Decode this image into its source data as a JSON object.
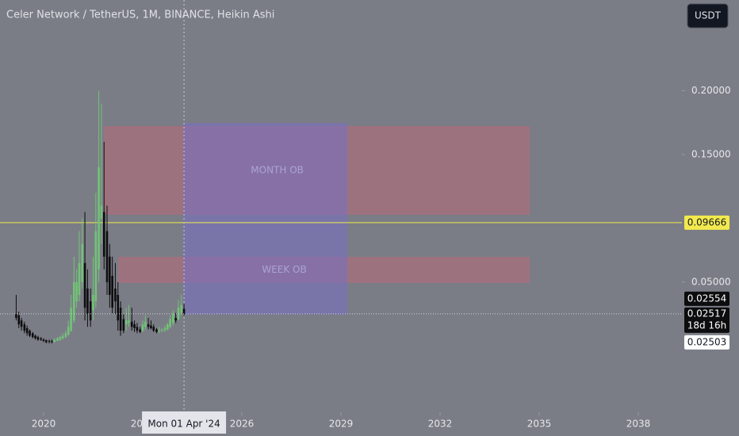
{
  "chart_data": {
    "type": "candlestick",
    "title": "Celer Network / TetherUS, 1M, BINANCE, Heikin Ashi",
    "currency": "USDT",
    "up_color": "#72c378",
    "down_color": "#0d0d0f",
    "x": [
      2019.17,
      2019.25,
      2019.33,
      2019.42,
      2019.5,
      2019.58,
      2019.67,
      2019.75,
      2019.83,
      2019.92,
      2020.0,
      2020.08,
      2020.17,
      2020.25,
      2020.33,
      2020.42,
      2020.5,
      2020.58,
      2020.67,
      2020.75,
      2020.83,
      2020.92,
      2021.0,
      2021.08,
      2021.17,
      2021.25,
      2021.33,
      2021.42,
      2021.5,
      2021.58,
      2021.67,
      2021.75,
      2021.83,
      2021.92,
      2022.0,
      2022.08,
      2022.17,
      2022.25,
      2022.33,
      2022.42,
      2022.5,
      2022.58,
      2022.67,
      2022.75,
      2022.83,
      2022.92,
      2023.0,
      2023.08,
      2023.17,
      2023.25,
      2023.33,
      2023.42,
      2023.5,
      2023.58,
      2023.67,
      2023.75,
      2023.83,
      2023.92,
      2024.0,
      2024.08,
      2024.17,
      2024.25
    ],
    "open": [
      0.025,
      0.024,
      0.02,
      0.017,
      0.014,
      0.012,
      0.01,
      0.008,
      0.007,
      0.006,
      0.005,
      0.0045,
      0.004,
      0.0037,
      0.003,
      0.004,
      0.005,
      0.006,
      0.007,
      0.009,
      0.012,
      0.02,
      0.035,
      0.04,
      0.05,
      0.065,
      0.045,
      0.035,
      0.028,
      0.035,
      0.06,
      0.1,
      0.105,
      0.09,
      0.07,
      0.055,
      0.045,
      0.04,
      0.03,
      0.021,
      0.017,
      0.018,
      0.019,
      0.017,
      0.015,
      0.013,
      0.012,
      0.015,
      0.017,
      0.016,
      0.015,
      0.013,
      0.012,
      0.012,
      0.0125,
      0.013,
      0.015,
      0.018,
      0.022,
      0.021,
      0.026,
      0.029
    ],
    "high": [
      0.04,
      0.027,
      0.022,
      0.019,
      0.016,
      0.013,
      0.011,
      0.009,
      0.008,
      0.007,
      0.006,
      0.005,
      0.005,
      0.005,
      0.006,
      0.007,
      0.008,
      0.01,
      0.012,
      0.02,
      0.04,
      0.07,
      0.06,
      0.09,
      0.1,
      0.105,
      0.06,
      0.045,
      0.07,
      0.12,
      0.2,
      0.19,
      0.16,
      0.11,
      0.08,
      0.07,
      0.065,
      0.05,
      0.035,
      0.025,
      0.03,
      0.032,
      0.03,
      0.02,
      0.018,
      0.015,
      0.02,
      0.024,
      0.022,
      0.02,
      0.017,
      0.014,
      0.015,
      0.014,
      0.016,
      0.018,
      0.024,
      0.028,
      0.026,
      0.036,
      0.04,
      0.033
    ],
    "low": [
      0.02,
      0.014,
      0.012,
      0.01,
      0.008,
      0.007,
      0.006,
      0.005,
      0.004,
      0.004,
      0.003,
      0.002,
      0.002,
      0.002,
      0.003,
      0.004,
      0.004,
      0.005,
      0.006,
      0.008,
      0.011,
      0.018,
      0.03,
      0.035,
      0.045,
      0.02,
      0.015,
      0.015,
      0.02,
      0.03,
      0.05,
      0.08,
      0.06,
      0.04,
      0.03,
      0.025,
      0.025,
      0.012,
      0.008,
      0.01,
      0.012,
      0.015,
      0.012,
      0.011,
      0.01,
      0.01,
      0.011,
      0.013,
      0.013,
      0.013,
      0.011,
      0.01,
      0.01,
      0.011,
      0.011,
      0.012,
      0.014,
      0.016,
      0.018,
      0.02,
      0.024,
      0.024
    ],
    "close": [
      0.022,
      0.017,
      0.015,
      0.012,
      0.01,
      0.008,
      0.007,
      0.006,
      0.005,
      0.005,
      0.004,
      0.003,
      0.0035,
      0.003,
      0.005,
      0.006,
      0.007,
      0.008,
      0.01,
      0.015,
      0.03,
      0.05,
      0.05,
      0.065,
      0.08,
      0.03,
      0.025,
      0.02,
      0.04,
      0.09,
      0.14,
      0.11,
      0.07,
      0.05,
      0.04,
      0.03,
      0.035,
      0.02,
      0.012,
      0.012,
      0.02,
      0.02,
      0.015,
      0.014,
      0.012,
      0.011,
      0.017,
      0.019,
      0.015,
      0.014,
      0.012,
      0.011,
      0.012,
      0.0125,
      0.014,
      0.017,
      0.021,
      0.025,
      0.02,
      0.03,
      0.032,
      0.025
    ],
    "xlim": [
      2018.68,
      2039.32
    ],
    "xticks": [
      2020,
      2023,
      2026,
      2029,
      2032,
      2035,
      2038
    ],
    "ylim": [
      -0.0519,
      0.2711
    ],
    "yticks": [
      {
        "value": 0.05,
        "label": "0.05000"
      },
      {
        "value": 0.15,
        "label": "0.15000"
      },
      {
        "value": 0.2,
        "label": "0.20000"
      }
    ],
    "zones": [
      {
        "label": "MONTH OB",
        "x": [
          2021.85,
          2034.69
        ],
        "y": [
          0.1034,
          0.1717
        ],
        "color": "#b36b7a"
      },
      {
        "label": "WEEK OB",
        "x": [
          2022.28,
          2034.69
        ],
        "y": [
          0.05,
          0.0693
        ],
        "color": "#b36b7a"
      },
      {
        "x": [
          2024.25,
          2029.17
        ],
        "y": [
          0.0252,
          0.1742
        ],
        "color": "#7a6fc0"
      }
    ],
    "horizontal_line": {
      "value": 0.09666,
      "color": "#f2e94e"
    },
    "last_price": 0.02517,
    "countdown": "18d 16h",
    "price_labels": [
      0.02554,
      0.02503
    ],
    "crosshair": {
      "x": 2024.25,
      "label": "Mon 01 Apr '24"
    }
  }
}
